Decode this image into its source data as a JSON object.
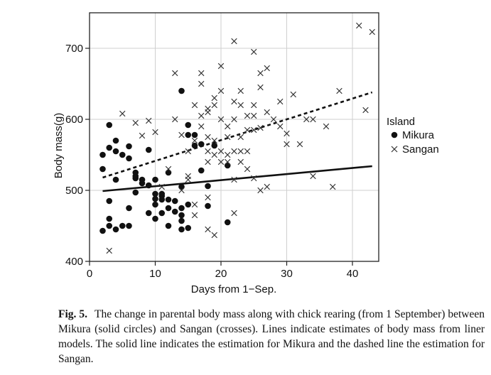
{
  "chart_data": {
    "type": "scatter",
    "xlabel": "Days from 1−Sep.",
    "ylabel": "Body mass(g)",
    "xlim": [
      0,
      44
    ],
    "ylim": [
      400,
      750
    ],
    "xticks": [
      0,
      10,
      20,
      30,
      40
    ],
    "yticks": [
      400,
      500,
      600,
      700
    ],
    "grid": true,
    "legend": {
      "title": "Island",
      "position": "right"
    },
    "series": [
      {
        "name": "Mikura",
        "marker": "circle",
        "points": [
          [
            2,
            443
          ],
          [
            2,
            530
          ],
          [
            2,
            550
          ],
          [
            3,
            450
          ],
          [
            3,
            460
          ],
          [
            3,
            485
          ],
          [
            3,
            560
          ],
          [
            3,
            592
          ],
          [
            4,
            445
          ],
          [
            4,
            515
          ],
          [
            4,
            555
          ],
          [
            4,
            570
          ],
          [
            5,
            450
          ],
          [
            5,
            550
          ],
          [
            6,
            450
          ],
          [
            6,
            475
          ],
          [
            6,
            545
          ],
          [
            6,
            562
          ],
          [
            7,
            497
          ],
          [
            7,
            517
          ],
          [
            7,
            520
          ],
          [
            7,
            525
          ],
          [
            8,
            510
          ],
          [
            8,
            515
          ],
          [
            9,
            468
          ],
          [
            9,
            507
          ],
          [
            9,
            557
          ],
          [
            10,
            460
          ],
          [
            10,
            480
          ],
          [
            10,
            488
          ],
          [
            10,
            495
          ],
          [
            10,
            515
          ],
          [
            11,
            468
          ],
          [
            11,
            487
          ],
          [
            11,
            492
          ],
          [
            11,
            495
          ],
          [
            12,
            450
          ],
          [
            12,
            475
          ],
          [
            12,
            487
          ],
          [
            12,
            525
          ],
          [
            13,
            470
          ],
          [
            13,
            485
          ],
          [
            14,
            445
          ],
          [
            14,
            457
          ],
          [
            14,
            465
          ],
          [
            14,
            475
          ],
          [
            14,
            505
          ],
          [
            14,
            640
          ],
          [
            15,
            447
          ],
          [
            15,
            480
          ],
          [
            15,
            578
          ],
          [
            15,
            592
          ],
          [
            16,
            563
          ],
          [
            16,
            578
          ],
          [
            17,
            528
          ],
          [
            17,
            565
          ],
          [
            18,
            478
          ],
          [
            18,
            506
          ],
          [
            19,
            563
          ],
          [
            21,
            455
          ],
          [
            21,
            535
          ]
        ]
      },
      {
        "name": "Sangan",
        "marker": "cross",
        "points": [
          [
            3,
            415
          ],
          [
            5,
            608
          ],
          [
            7,
            595
          ],
          [
            8,
            577
          ],
          [
            9,
            598
          ],
          [
            10,
            582
          ],
          [
            11,
            505
          ],
          [
            12,
            530
          ],
          [
            13,
            600
          ],
          [
            13,
            665
          ],
          [
            14,
            578
          ],
          [
            14,
            500
          ],
          [
            15,
            515
          ],
          [
            15,
            520
          ],
          [
            15,
            555
          ],
          [
            16,
            570
          ],
          [
            16,
            620
          ],
          [
            16,
            465
          ],
          [
            16,
            480
          ],
          [
            17,
            590
          ],
          [
            17,
            605
          ],
          [
            17,
            650
          ],
          [
            17,
            665
          ],
          [
            18,
            555
          ],
          [
            18,
            575
          ],
          [
            18,
            610
          ],
          [
            18,
            615
          ],
          [
            18,
            540
          ],
          [
            18,
            490
          ],
          [
            18,
            445
          ],
          [
            19,
            630
          ],
          [
            19,
            620
          ],
          [
            19,
            570
          ],
          [
            19,
            550
          ],
          [
            19,
            437
          ],
          [
            20,
            640
          ],
          [
            20,
            675
          ],
          [
            20,
            600
          ],
          [
            20,
            555
          ],
          [
            20,
            540
          ],
          [
            21,
            590
          ],
          [
            21,
            575
          ],
          [
            21,
            550
          ],
          [
            21,
            540
          ],
          [
            22,
            710
          ],
          [
            22,
            625
          ],
          [
            22,
            600
          ],
          [
            22,
            555
          ],
          [
            22,
            515
          ],
          [
            22,
            468
          ],
          [
            23,
            640
          ],
          [
            23,
            620
          ],
          [
            23,
            575
          ],
          [
            23,
            555
          ],
          [
            23,
            540
          ],
          [
            24,
            605
          ],
          [
            24,
            585
          ],
          [
            24,
            555
          ],
          [
            24,
            530
          ],
          [
            25,
            695
          ],
          [
            25,
            620
          ],
          [
            25,
            605
          ],
          [
            25,
            585
          ],
          [
            25,
            517
          ],
          [
            26,
            665
          ],
          [
            26,
            645
          ],
          [
            26,
            588
          ],
          [
            26,
            500
          ],
          [
            27,
            672
          ],
          [
            27,
            610
          ],
          [
            27,
            505
          ],
          [
            28,
            600
          ],
          [
            29,
            625
          ],
          [
            29,
            590
          ],
          [
            30,
            580
          ],
          [
            30,
            565
          ],
          [
            31,
            635
          ],
          [
            32,
            565
          ],
          [
            33,
            600
          ],
          [
            34,
            600
          ],
          [
            34,
            520
          ],
          [
            36,
            590
          ],
          [
            37,
            505
          ],
          [
            38,
            640
          ],
          [
            41,
            732
          ],
          [
            42,
            613
          ],
          [
            43,
            723
          ]
        ]
      }
    ],
    "fit_lines": [
      {
        "series": "Mikura",
        "style": "solid",
        "x": [
          2,
          43
        ],
        "y": [
          499,
          534
        ]
      },
      {
        "series": "Sangan",
        "style": "dashed",
        "x": [
          2,
          43
        ],
        "y": [
          518,
          638
        ]
      }
    ]
  },
  "caption": {
    "label": "Fig. 5.",
    "text": "The change in parental body mass along with chick rearing (from 1 September) between Mikura (solid circles) and Sangan (crosses). Lines indicate estimates of body mass from liner models. The solid line indicates the estimation for Mikura and the dashed line the estimation for Sangan."
  }
}
